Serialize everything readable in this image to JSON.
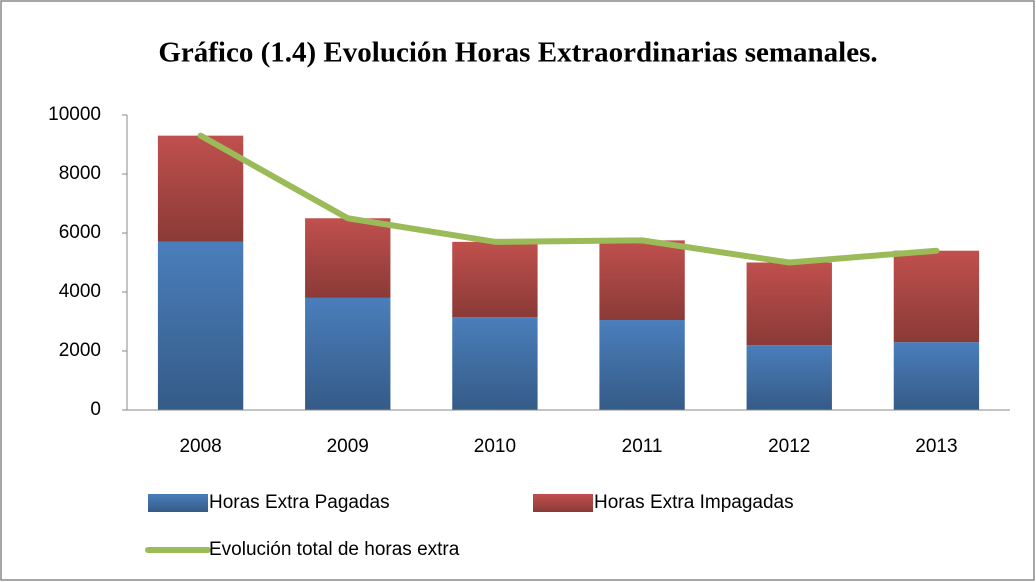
{
  "chart_data": {
    "type": "bar",
    "stacked": true,
    "title": "Gráfico (1.4) Evolución Horas Extraordinarias semanales.",
    "categories": [
      "2008",
      "2009",
      "2010",
      "2011",
      "2012",
      "2013"
    ],
    "series": [
      {
        "name": "Horas Extra Pagadas",
        "type": "bar",
        "color": "#4a7ebb",
        "values": [
          5700,
          3800,
          3150,
          3050,
          2200,
          2300
        ]
      },
      {
        "name": "Horas Extra Impagadas",
        "type": "bar",
        "color": "#c0504d",
        "values": [
          3600,
          2700,
          2550,
          2700,
          2800,
          3100
        ]
      },
      {
        "name": "Evolución total de horas extra",
        "type": "line",
        "color": "#9bbb59",
        "values": [
          9300,
          6500,
          5700,
          5750,
          5000,
          5400
        ]
      }
    ],
    "ylim": [
      0,
      10000
    ],
    "yticks": [
      0,
      2000,
      4000,
      6000,
      8000,
      10000
    ],
    "grid": false
  }
}
